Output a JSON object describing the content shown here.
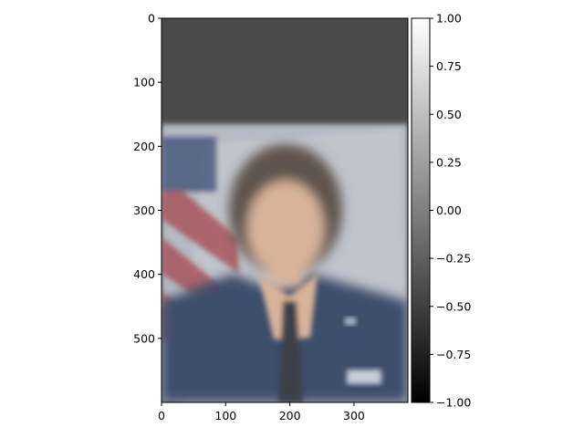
{
  "chart_data": {
    "type": "heatmap",
    "title": "",
    "xlabel": "",
    "ylabel": "",
    "image_width": 384,
    "image_height": 600,
    "xlim": [
      0,
      384
    ],
    "ylim": [
      600,
      0
    ],
    "x_ticks": [
      0,
      100,
      200,
      300
    ],
    "x_tick_labels": [
      "0",
      "100",
      "200",
      "300"
    ],
    "y_ticks": [
      0,
      100,
      200,
      300,
      400,
      500
    ],
    "y_tick_labels": [
      "0",
      "100",
      "200",
      "300",
      "400",
      "500"
    ],
    "grid": false,
    "colorbar": {
      "colormap": "gray",
      "range": [
        -1.0,
        1.0
      ],
      "ticks": [
        1.0,
        0.75,
        0.5,
        0.25,
        0.0,
        -0.25,
        -0.5,
        -0.75,
        -1.0
      ],
      "tick_labels": [
        "1.00",
        "0.75",
        "0.50",
        "0.25",
        "0.00",
        "−0.25",
        "−0.50",
        "−0.75",
        "−1.00"
      ],
      "placement": "right"
    },
    "colors": {
      "top_fill": "#4a4a4a",
      "backdrop": "#b5bac3",
      "suit": "#3d4e6c",
      "skin": "#d8b39a",
      "hair": "#5e544e",
      "flag_red": "#a8555c",
      "tie": "#3c4048"
    }
  }
}
